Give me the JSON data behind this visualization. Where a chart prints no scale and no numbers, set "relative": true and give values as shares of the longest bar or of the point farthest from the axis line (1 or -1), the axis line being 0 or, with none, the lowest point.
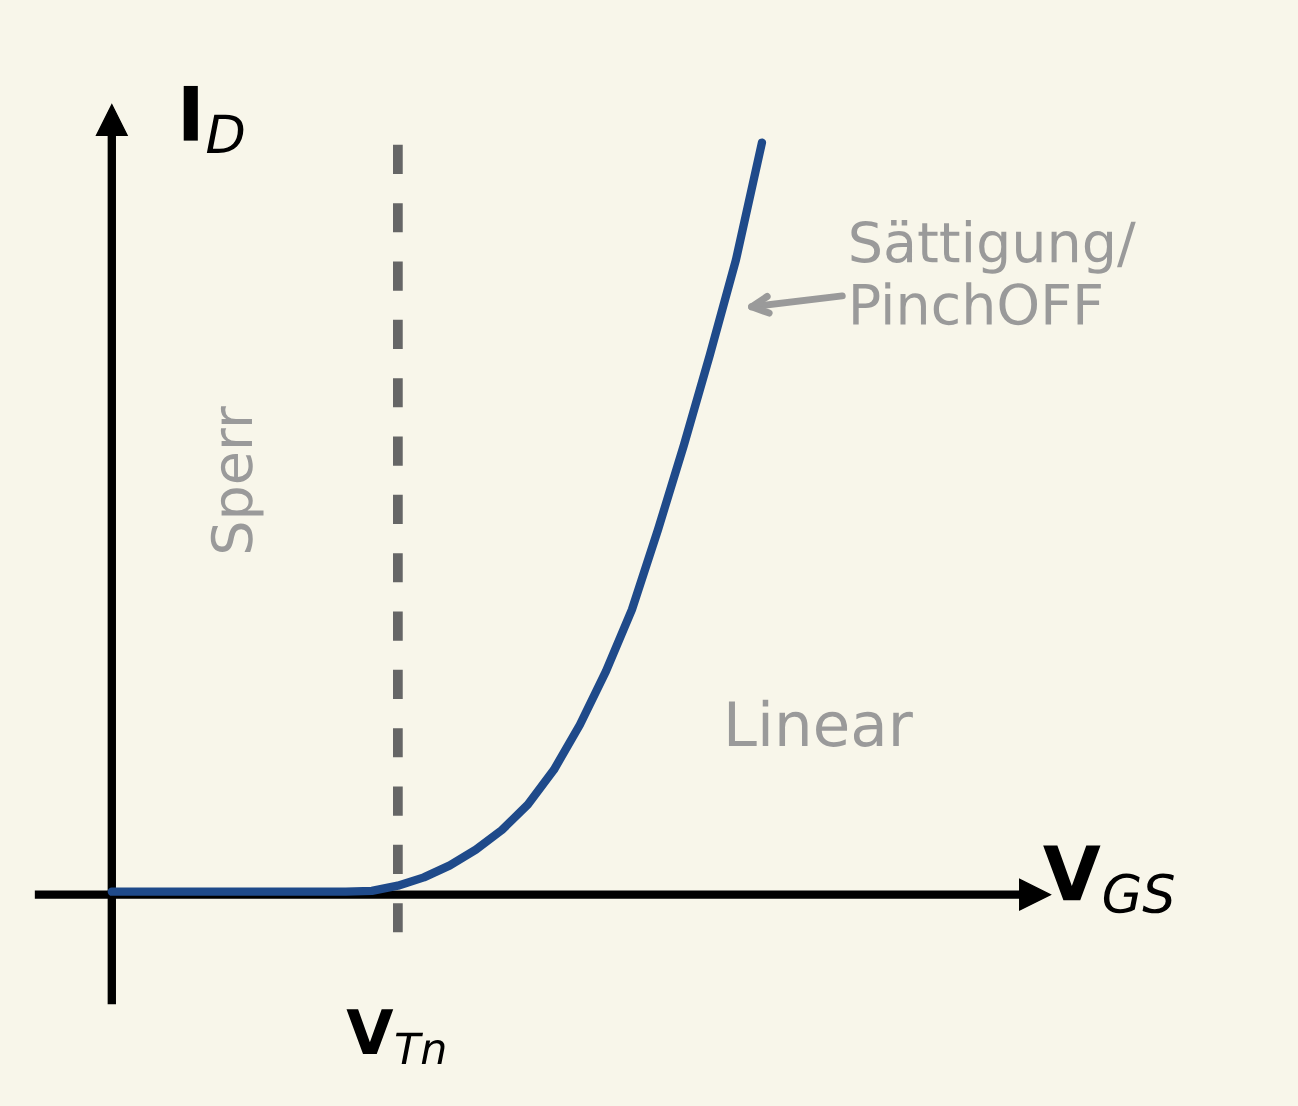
{
  "chart_data": {
    "type": "line",
    "relative": true,
    "xlabel": "V$_{GS}$",
    "ylabel": "I$_{D}$",
    "categories": [
      null,
      null,
      null,
      null,
      null,
      null,
      null,
      null,
      null,
      null,
      null,
      null,
      null,
      null,
      null,
      null,
      null,
      null,
      null,
      null,
      null,
      null,
      null,
      null,
      null,
      null,
      null,
      null,
      null,
      null,
      null,
      null,
      null,
      null,
      null,
      null
    ],
    "series": [
      {
        "color": "#1f4a8a",
        "values": [
          0.004,
          0.004,
          0.004,
          0.004,
          0.004,
          0.004,
          0.004,
          0.004,
          0.004,
          0.004,
          0.005,
          0.012,
          0.023,
          0.039,
          0.06,
          0.086,
          0.12,
          0.166,
          0.226,
          0.297,
          0.379,
          0.485,
          0.598,
          0.718,
          0.844,
          1.0,
          null,
          null,
          null,
          null,
          null,
          null,
          null,
          null,
          null,
          null
        ]
      }
    ],
    "annotations": [
      "Sperr",
      "Sättigung/ PinchOFF",
      "Linear",
      "V$_{Tn}$"
    ],
    "marker": "none",
    "line_style": "solid"
  }
}
